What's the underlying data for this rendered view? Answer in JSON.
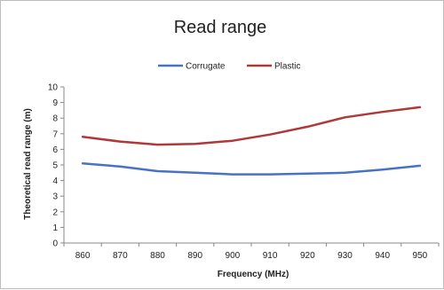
{
  "chart_data": {
    "type": "line",
    "title": "Read range",
    "xlabel": "Frequency (MHz)",
    "ylabel": "Theoretical read range (m)",
    "x": [
      860,
      870,
      880,
      890,
      900,
      910,
      920,
      930,
      940,
      950
    ],
    "x_tick_labels": [
      "860",
      "870",
      "880",
      "890",
      "900",
      "910",
      "920",
      "930",
      "940",
      "950"
    ],
    "y_tick_labels": [
      "0",
      "1",
      "2",
      "3",
      "4",
      "5",
      "6",
      "7",
      "8",
      "9",
      "10"
    ],
    "xlim": [
      855,
      955
    ],
    "ylim": [
      0,
      10
    ],
    "grid": false,
    "legend_position": "top-center",
    "series": [
      {
        "name": "Corrugate",
        "color": "#4a72c4",
        "values": [
          5.1,
          4.9,
          4.6,
          4.5,
          4.4,
          4.4,
          4.45,
          4.5,
          4.7,
          4.95
        ]
      },
      {
        "name": "Plastic",
        "color": "#b03838",
        "values": [
          6.8,
          6.5,
          6.3,
          6.35,
          6.55,
          6.95,
          7.45,
          8.05,
          8.4,
          8.7
        ]
      }
    ]
  }
}
